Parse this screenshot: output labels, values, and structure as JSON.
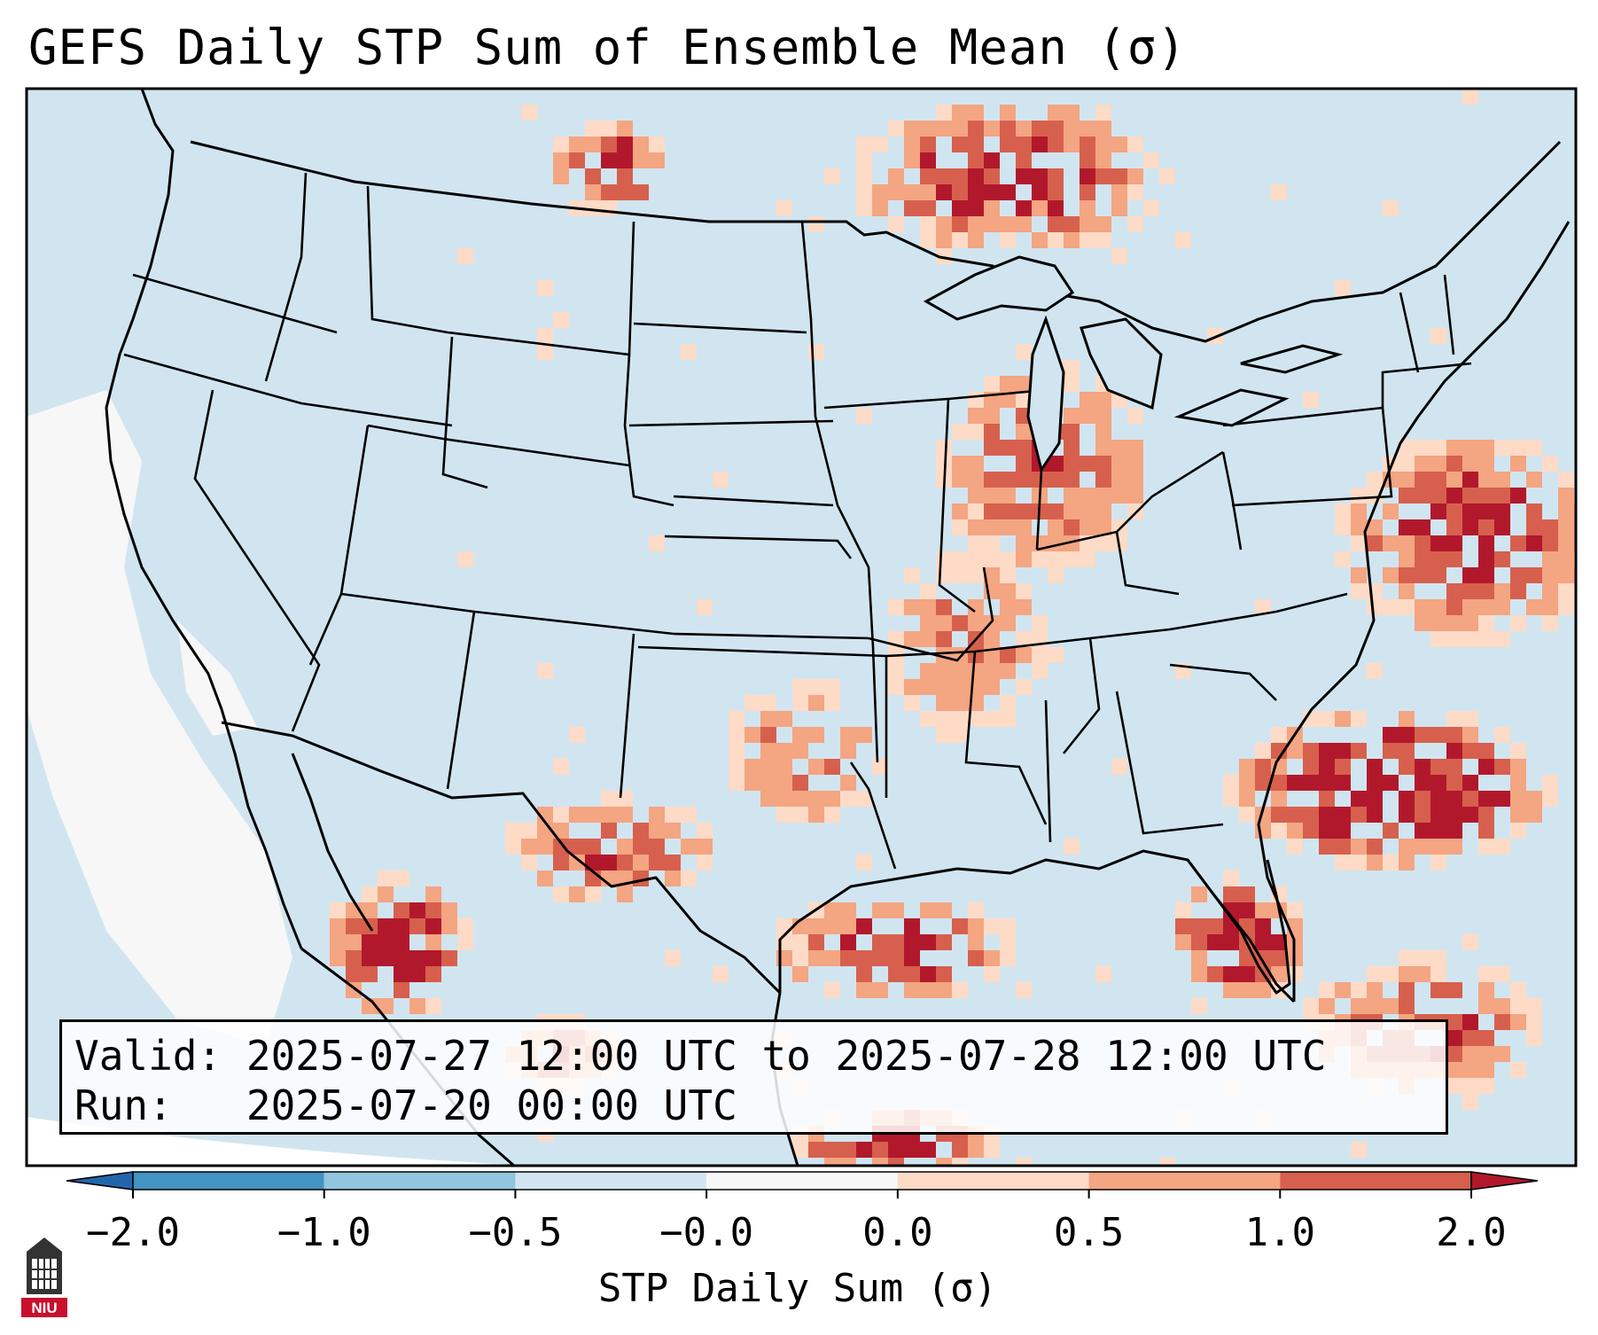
{
  "title": "GEFS Daily STP Sum of Ensemble Mean (σ)",
  "info": {
    "valid_label": "Valid:",
    "valid_value": "2025-07-27 12:00 UTC to 2025-07-28 12:00 UTC",
    "run_label": "Run:",
    "run_value": "2025-07-20 00:00 UTC"
  },
  "colorbar": {
    "title": "STP Daily Sum (σ)",
    "ticks": [
      "−2.0",
      "−1.0",
      "−0.5",
      "−0.0",
      "0.0",
      "0.5",
      "1.0",
      "2.0"
    ],
    "colors": [
      "#2166ac",
      "#4393c3",
      "#92c5de",
      "#d1e5f0",
      "#f7f7f7",
      "#fddbc7",
      "#f4a582",
      "#d6604d",
      "#b2182b"
    ],
    "extend": "both"
  },
  "logo": {
    "text": "NIU",
    "name": "niu-logo"
  },
  "map": {
    "ocean_color": "#d1e5f0",
    "neutral_color": "#f7f7f7",
    "region": "Contiguous United States",
    "layers": [
      "state-borders",
      "country-borders",
      "coastlines",
      "stp-anomaly-grid"
    ]
  }
}
